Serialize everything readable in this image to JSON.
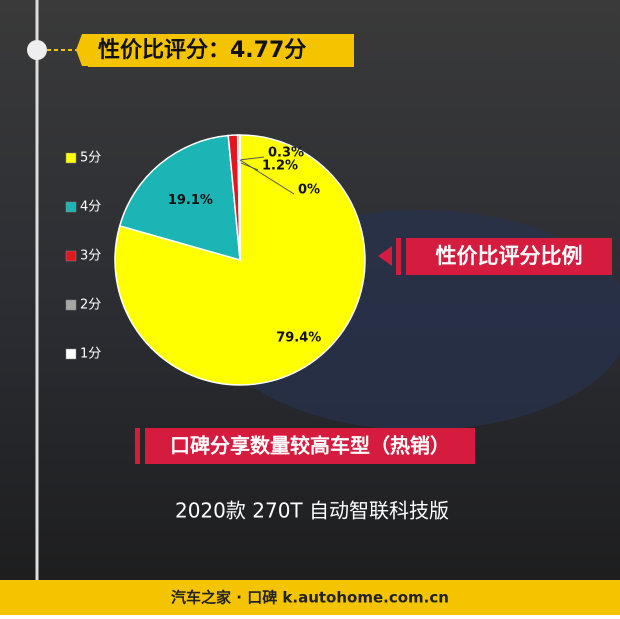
{
  "chart_data": {
    "type": "pie",
    "title": "性价比评分：4.77分",
    "subtitle": "性价比评分比例",
    "categories": [
      "5分",
      "4分",
      "3分",
      "2分",
      "1分"
    ],
    "values": [
      79.4,
      19.1,
      1.2,
      0.3,
      0
    ],
    "value_labels": [
      "79.4%",
      "19.1%",
      "1.2%",
      "0.3%",
      "0%"
    ],
    "colors": [
      "#ffff00",
      "#1cb5b5",
      "#e8141e",
      "#a6a6a6",
      "#ffffff"
    ],
    "legend": "left"
  },
  "caption": "口碑分享数量较高车型（热销）",
  "model": "2020款 270T 自动智联科技版",
  "footer": "汽车之家 · 口碑  k.autohome.com.cn"
}
